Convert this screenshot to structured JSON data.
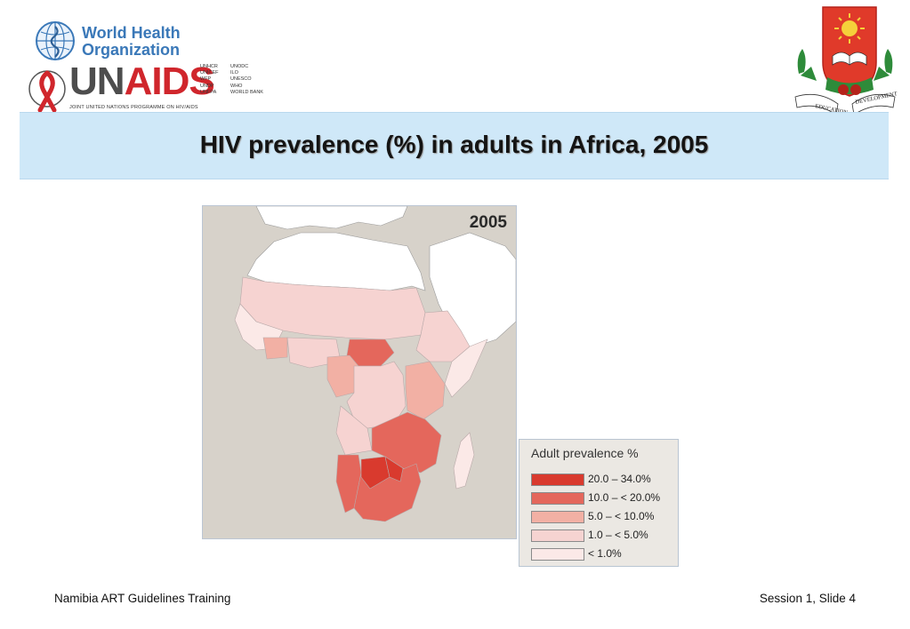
{
  "header": {
    "who_line1": "World Health",
    "who_line2": "Organization",
    "unaids_un": "UN",
    "unaids_aids": "AIDS",
    "unaids_subtitle": "JOINT UNITED NATIONS PROGRAMME ON HIV/AIDS",
    "cosponsors": [
      "UNHCR",
      "UNODC",
      "UNICEF",
      "ILO",
      "WFP",
      "UNESCO",
      "UNDP",
      "WHO",
      "UNFPA",
      "WORLD BANK"
    ],
    "crest_ribbon_left": "EDUCATION",
    "crest_ribbon_right": "DEVELOPMENT"
  },
  "title": "HIV prevalence (%) in adults in Africa, 2005",
  "map": {
    "year_label": "2005",
    "colors": {
      "water": "#d7d2ca",
      "no_data": "#ffffff",
      "lt1": "#fbe9e7",
      "1_5": "#f6d3d1",
      "5_10": "#f2b0a4",
      "10_20": "#e4675c",
      "20_34": "#d93a2e"
    }
  },
  "legend": {
    "title": "Adult prevalence %",
    "items": [
      {
        "label": "20.0  –    34.0%",
        "color": "#d93a2e"
      },
      {
        "label": "10.0  – < 20.0%",
        "color": "#e4675c"
      },
      {
        "label": "  5.0  – < 10.0%",
        "color": "#f2b0a4"
      },
      {
        "label": "  1.0  –   < 5.0%",
        "color": "#f6d3d1"
      },
      {
        "label": "< 1.0%",
        "color": "#fbe9e7"
      }
    ]
  },
  "footer": {
    "left": "Namibia ART Guidelines Training",
    "right": "Session 1, Slide 4"
  }
}
